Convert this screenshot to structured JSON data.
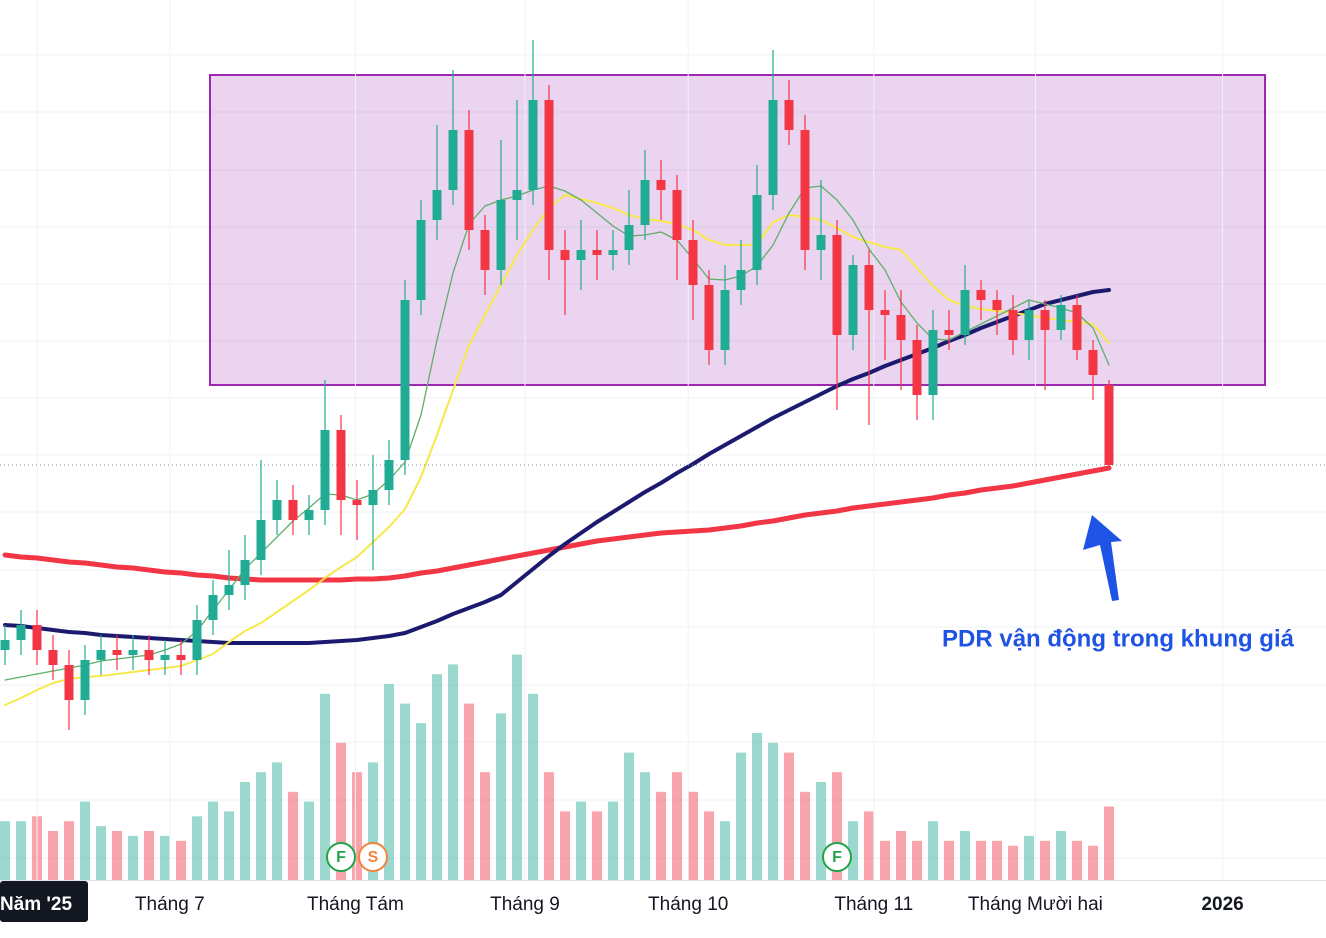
{
  "chart_data": {
    "type": "candlestick",
    "ylim": [
      0,
      880
    ],
    "volume_ylim": [
      0,
      250
    ],
    "colors": {
      "up": "#22ab94",
      "down": "#f23645"
    },
    "candles": {
      "open": [
        230,
        240,
        255,
        230,
        215,
        180,
        220,
        230,
        225,
        230,
        220,
        225,
        220,
        260,
        285,
        295,
        320,
        360,
        380,
        360,
        370,
        450,
        380,
        375,
        390,
        420,
        580,
        660,
        690,
        750,
        650,
        610,
        680,
        690,
        780,
        630,
        620,
        630,
        625,
        630,
        655,
        700,
        690,
        640,
        595,
        530,
        590,
        610,
        685,
        780,
        750,
        630,
        645,
        545,
        615,
        570,
        565,
        540,
        485,
        550,
        545,
        590,
        580,
        570,
        540,
        570,
        550,
        575,
        530,
        495
      ],
      "high": [
        255,
        270,
        270,
        245,
        230,
        235,
        245,
        245,
        245,
        245,
        240,
        240,
        275,
        300,
        330,
        345,
        420,
        400,
        395,
        385,
        500,
        465,
        400,
        425,
        440,
        600,
        680,
        755,
        810,
        770,
        665,
        740,
        780,
        840,
        795,
        650,
        660,
        650,
        650,
        690,
        730,
        720,
        705,
        660,
        610,
        615,
        640,
        715,
        830,
        800,
        765,
        700,
        660,
        625,
        630,
        590,
        590,
        555,
        570,
        570,
        615,
        600,
        590,
        585,
        580,
        580,
        585,
        585,
        540,
        500
      ],
      "low": [
        215,
        225,
        215,
        200,
        150,
        165,
        205,
        210,
        210,
        205,
        205,
        205,
        205,
        245,
        270,
        280,
        305,
        345,
        345,
        345,
        355,
        345,
        340,
        310,
        375,
        405,
        565,
        640,
        675,
        630,
        585,
        595,
        640,
        675,
        600,
        565,
        590,
        600,
        610,
        615,
        640,
        660,
        600,
        560,
        515,
        515,
        575,
        595,
        670,
        735,
        610,
        600,
        470,
        530,
        455,
        520,
        490,
        460,
        460,
        530,
        535,
        560,
        545,
        525,
        520,
        490,
        540,
        520,
        480,
        410
      ],
      "close": [
        240,
        255,
        230,
        215,
        180,
        220,
        230,
        225,
        230,
        220,
        225,
        220,
        260,
        285,
        295,
        320,
        360,
        380,
        360,
        370,
        450,
        380,
        375,
        390,
        420,
        580,
        660,
        690,
        750,
        650,
        610,
        680,
        690,
        780,
        630,
        620,
        630,
        625,
        630,
        655,
        700,
        690,
        640,
        595,
        530,
        590,
        610,
        685,
        780,
        750,
        630,
        645,
        545,
        615,
        570,
        565,
        540,
        485,
        550,
        545,
        590,
        580,
        570,
        540,
        570,
        550,
        575,
        530,
        505,
        415
      ],
      "volume": [
        60,
        60,
        65,
        50,
        60,
        80,
        55,
        50,
        45,
        50,
        45,
        40,
        65,
        80,
        70,
        100,
        110,
        120,
        90,
        80,
        190,
        140,
        110,
        120,
        200,
        180,
        160,
        210,
        220,
        180,
        110,
        170,
        230,
        190,
        110,
        70,
        80,
        70,
        80,
        130,
        110,
        90,
        110,
        90,
        70,
        60,
        130,
        150,
        140,
        130,
        90,
        100,
        110,
        60,
        70,
        40,
        50,
        40,
        60,
        40,
        50,
        40,
        40,
        35,
        45,
        40,
        50,
        40,
        35,
        75
      ]
    },
    "moving_averages": [
      {
        "color": "#f23645",
        "values": [
          325,
          323,
          322,
          320,
          318,
          317,
          315,
          313,
          312,
          310,
          308,
          307,
          305,
          304,
          302,
          301,
          300,
          300,
          300,
          300,
          300,
          300,
          301,
          301,
          302,
          304,
          307,
          309,
          312,
          315,
          318,
          321,
          324,
          327,
          330,
          333,
          336,
          339,
          341,
          343,
          345,
          347,
          348,
          349,
          350,
          352,
          354,
          357,
          359,
          362,
          365,
          367,
          369,
          372,
          374,
          376,
          378,
          380,
          382,
          385,
          387,
          390,
          392,
          394,
          397,
          400,
          403,
          406,
          409,
          412
        ]
      },
      {
        "color": "#1c1a6e",
        "values": [
          255,
          254,
          252,
          250,
          248,
          247,
          245,
          244,
          243,
          242,
          241,
          240,
          239,
          238,
          237,
          237,
          237,
          237,
          237,
          237,
          238,
          239,
          240,
          242,
          244,
          247,
          253,
          259,
          266,
          272,
          278,
          285,
          298,
          311,
          324,
          336,
          347,
          358,
          368,
          378,
          388,
          397,
          407,
          416,
          426,
          435,
          444,
          453,
          462,
          470,
          478,
          486,
          494,
          501,
          507,
          514,
          520,
          526,
          532,
          539,
          545,
          552,
          558,
          564,
          570,
          576,
          580,
          584,
          588,
          590
        ]
      },
      {
        "color": "#f7e84a",
        "values": [
          175,
          182,
          190,
          197,
          201,
          203,
          204,
          206,
          208,
          210,
          212,
          214,
          220,
          226,
          238,
          249,
          257,
          268,
          279,
          290,
          302,
          313,
          323,
          338,
          353,
          371,
          403,
          445,
          490,
          535,
          565,
          595,
          625,
          650,
          672,
          685,
          681,
          677,
          672,
          665,
          661,
          659,
          656,
          650,
          640,
          635,
          635,
          635,
          658,
          665,
          663,
          660,
          652,
          643,
          638,
          633,
          630,
          612,
          594,
          580,
          574,
          571,
          569,
          567,
          565,
          562,
          560,
          558,
          556,
          537
        ]
      },
      {
        "color": "#5fae6a",
        "values": [
          200,
          203,
          206,
          209,
          212,
          215,
          219,
          221,
          223,
          225,
          230,
          236,
          249,
          270,
          290,
          311,
          327,
          343,
          359,
          372,
          386,
          385,
          380,
          386,
          400,
          418,
          465,
          540,
          607,
          656,
          674,
          680,
          684,
          690,
          694,
          689,
          680,
          667,
          654,
          644,
          645,
          648,
          640,
          621,
          601,
          600,
          604,
          614,
          635,
          667,
          692,
          694,
          680,
          660,
          631,
          610,
          578,
          557,
          541,
          540,
          548,
          556,
          564,
          572,
          580,
          576,
          572,
          567,
          552,
          515
        ]
      }
    ],
    "range_box": {
      "low": 495,
      "high": 805,
      "color": "#9c27b0"
    },
    "xticks": [
      {
        "value": 2,
        "label": "Năm '25"
      },
      {
        "value": 10.3,
        "label": "Tháng 7"
      },
      {
        "value": 21.9,
        "label": "Tháng Tám"
      },
      {
        "value": 32.5,
        "label": "Tháng 9"
      },
      {
        "value": 42.7,
        "label": "Tháng 10"
      },
      {
        "value": 54.3,
        "label": "Tháng 11"
      },
      {
        "value": 64.4,
        "label": "Tháng Mười hai"
      },
      {
        "value": 76.1,
        "label": "2026"
      }
    ],
    "events": [
      {
        "label": "F",
        "at": 21,
        "color": "#22a447"
      },
      {
        "label": "S",
        "at": 23,
        "color": "#f0843c"
      },
      {
        "label": "F",
        "at": 52,
        "color": "#22a447"
      }
    ],
    "annotation": "PDR vận động trong khung giá"
  }
}
